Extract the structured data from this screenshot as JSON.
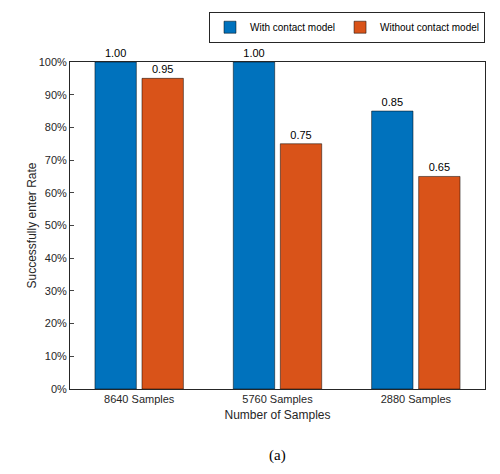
{
  "chart_data": {
    "type": "bar",
    "categories": [
      "8640 Samples",
      "5760 Samples",
      "2880 Samples"
    ],
    "series": [
      {
        "name": "With contact model",
        "color": "#0072bd",
        "values": [
          1.0,
          1.0,
          0.85
        ],
        "value_labels": [
          "1.00",
          "1.00",
          "0.85"
        ]
      },
      {
        "name": "Without contact model",
        "color": "#d95319",
        "values": [
          0.95,
          0.75,
          0.65
        ],
        "value_labels": [
          "0.95",
          "0.75",
          "0.65"
        ]
      }
    ],
    "x_label": "Number of Samples",
    "y_label": "Successfully enter Rate",
    "caption": "(a)",
    "ylim": [
      0,
      1
    ],
    "yticks": [
      {
        "value": 0,
        "label": "0%"
      },
      {
        "value": 0.1,
        "label": "10%"
      },
      {
        "value": 0.2,
        "label": "20%"
      },
      {
        "value": 0.3,
        "label": "30%"
      },
      {
        "value": 0.4,
        "label": "40%"
      },
      {
        "value": 0.5,
        "label": "50%"
      },
      {
        "value": 0.6,
        "label": "60%"
      },
      {
        "value": 0.7,
        "label": "70%"
      },
      {
        "value": 0.8,
        "label": "80%"
      },
      {
        "value": 0.9,
        "label": "90%"
      },
      {
        "value": 1,
        "label": "100%"
      }
    ],
    "grid": false,
    "legend": "upper right",
    "data_labels": true
  }
}
